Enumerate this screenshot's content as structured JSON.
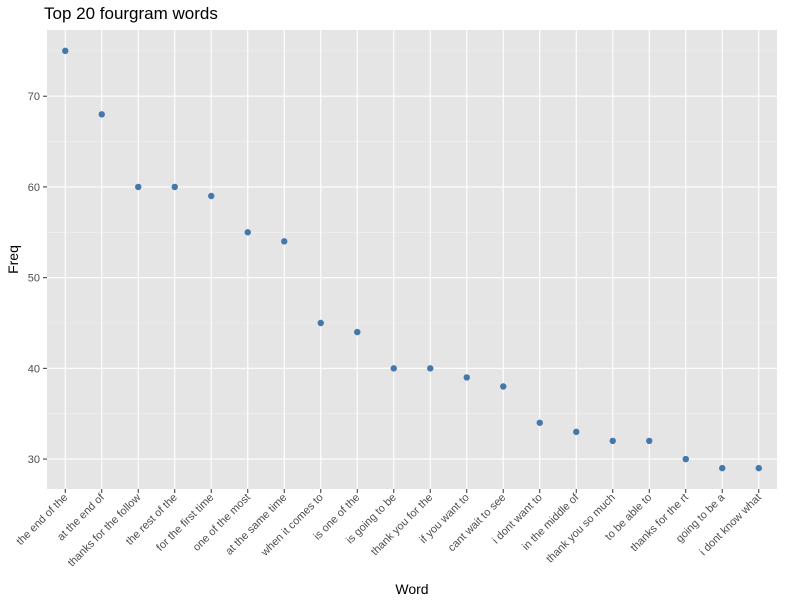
{
  "chart_data": {
    "type": "scatter",
    "title": "Top 20 fourgram words",
    "xlabel": "Word",
    "ylabel": "Freq",
    "categories": [
      "the end of the",
      "at the end of",
      "thanks for the follow",
      "the rest of the",
      "for the first time",
      "one of the most",
      "at the same time",
      "when it comes to",
      "is one of the",
      "is going to be",
      "thank you for the",
      "if you want to",
      "cant wait to see",
      "i dont want to",
      "in the middle of",
      "thank you so much",
      "to be able to",
      "thanks for the rt",
      "going to be a",
      "i dont know what"
    ],
    "values": [
      75,
      68,
      60,
      60,
      59,
      55,
      54,
      45,
      44,
      40,
      40,
      39,
      38,
      34,
      33,
      32,
      32,
      30,
      29,
      29
    ],
    "yticks": [
      30,
      40,
      50,
      60,
      70
    ],
    "ylim": [
      26.7,
      77.3
    ],
    "grid": true,
    "colors": {
      "point": "#4477aa",
      "panel": "#e5e5e5",
      "grid_major": "#ffffff",
      "grid_minor": "#f2f2f2"
    }
  }
}
